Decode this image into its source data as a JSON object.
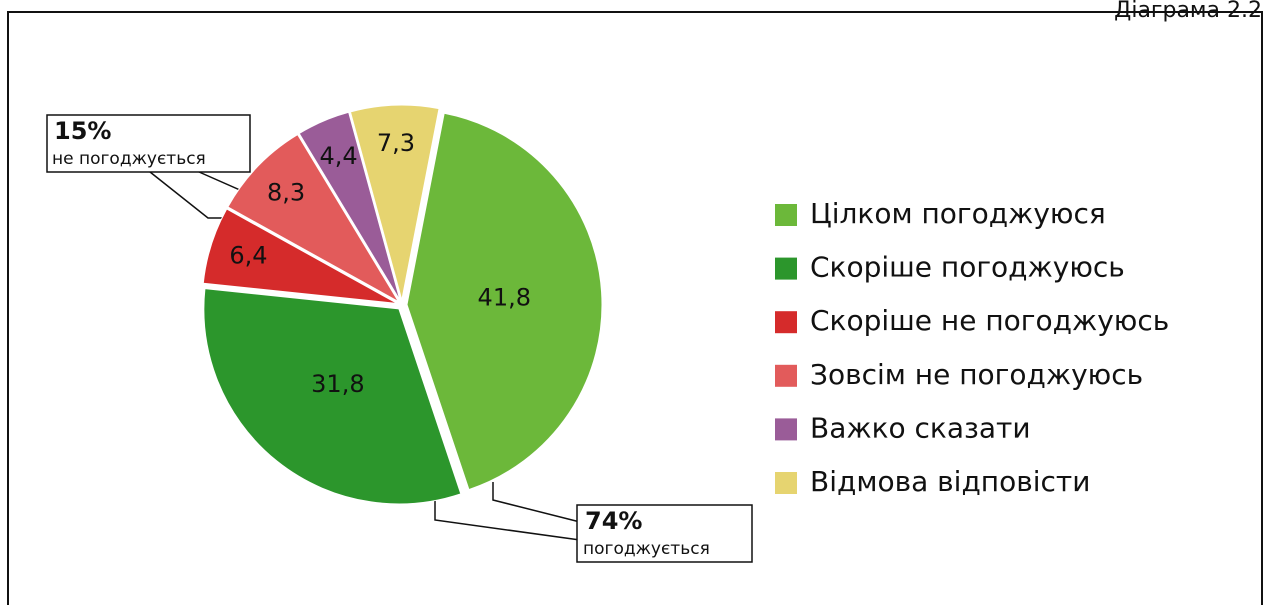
{
  "chart_data": {
    "type": "pie",
    "title": "Діаграма 2.2",
    "categories": [
      "Цілком погоджуюся",
      "Скоріше погоджуюсь",
      "Скоріше не погоджуюсь",
      "Зовсім не погоджуюсь",
      "Важко сказати",
      "Відмова відповісти"
    ],
    "values": [
      41.8,
      31.8,
      6.4,
      8.3,
      4.4,
      7.3
    ],
    "value_labels": [
      "41,8",
      "31,8",
      "6,4",
      "8,3",
      "4,4",
      "7,3"
    ],
    "colors": [
      "#6cb83a",
      "#2c962c",
      "#d52b2b",
      "#e25b5b",
      "#9a5c98",
      "#e6d470"
    ],
    "annotations": [
      {
        "value": "15%",
        "text": "не погоджується"
      },
      {
        "value": "74%",
        "text": "погоджується"
      }
    ]
  }
}
